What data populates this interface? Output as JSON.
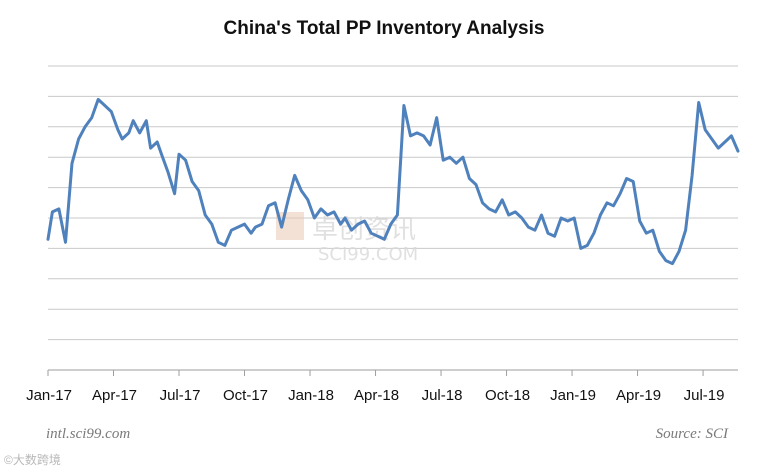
{
  "chart_data": {
    "type": "line",
    "title": "China's Total PP Inventory Analysis",
    "xlabel": "",
    "ylabel": "",
    "ylim": [
      0,
      10
    ],
    "grid": true,
    "categories": [
      "Jan-17",
      "Apr-17",
      "Jul-17",
      "Oct-17",
      "Jan-18",
      "Apr-18",
      "Jul-18",
      "Oct-18",
      "Jan-19",
      "Apr-19",
      "Jul-19"
    ],
    "series": [
      {
        "name": "Total PP Inventory",
        "color": "#4f81bd",
        "x": [
          0,
          0.2,
          0.5,
          0.8,
          1.1,
          1.4,
          1.7,
          2.0,
          2.3,
          2.6,
          2.9,
          3.2,
          3.4,
          3.7,
          3.9,
          4.2,
          4.5,
          4.7,
          5.0,
          5.2,
          5.5,
          5.8,
          6.0,
          6.3,
          6.6,
          6.9,
          7.2,
          7.5,
          7.8,
          8.1,
          8.4,
          8.7,
          9.0,
          9.3,
          9.5,
          9.8,
          10.1,
          10.4,
          10.7,
          11.0,
          11.3,
          11.6,
          11.9,
          12.2,
          12.5,
          12.8,
          13.1,
          13.4,
          13.6,
          13.9,
          14.2,
          14.5,
          14.8,
          15.1,
          15.4,
          15.7,
          16.0,
          16.3,
          16.6,
          16.9,
          17.2,
          17.5,
          17.8,
          18.1,
          18.4,
          18.7,
          19.0,
          19.3,
          19.6,
          19.9,
          20.2,
          20.5,
          20.8,
          21.1,
          21.4,
          21.7,
          22.0,
          22.3,
          22.6,
          22.9,
          23.2,
          23.5,
          23.8,
          24.1,
          24.4,
          24.7,
          25.0,
          25.3,
          25.6,
          25.9,
          26.2,
          26.5,
          26.8,
          27.1,
          27.4,
          27.7,
          28.0,
          28.3,
          28.6,
          28.9,
          29.2,
          29.5,
          29.8,
          30.1,
          30.4,
          30.7,
          31.0,
          31.3,
          31.6
        ],
        "values": [
          4.3,
          5.2,
          5.3,
          4.2,
          6.8,
          7.6,
          8.0,
          8.3,
          8.9,
          8.7,
          8.5,
          7.9,
          7.6,
          7.8,
          8.2,
          7.8,
          8.2,
          7.3,
          7.5,
          7.1,
          6.5,
          5.8,
          7.1,
          6.9,
          6.2,
          5.9,
          5.1,
          4.8,
          4.2,
          4.1,
          4.6,
          4.7,
          4.8,
          4.5,
          4.7,
          4.8,
          5.4,
          5.5,
          4.7,
          5.6,
          6.4,
          5.9,
          5.6,
          5.0,
          5.3,
          5.1,
          5.2,
          4.8,
          5.0,
          4.6,
          4.8,
          4.9,
          4.5,
          4.4,
          4.3,
          4.8,
          5.1,
          8.7,
          7.7,
          7.8,
          7.7,
          7.4,
          8.3,
          6.9,
          7.0,
          6.8,
          7.0,
          6.3,
          6.1,
          5.5,
          5.3,
          5.2,
          5.6,
          5.1,
          5.2,
          5.0,
          4.7,
          4.6,
          5.1,
          4.5,
          4.4,
          5.0,
          4.9,
          5.0,
          4.0,
          4.1,
          4.5,
          5.1,
          5.5,
          5.4,
          5.8,
          6.3,
          6.2,
          4.9,
          4.5,
          4.6,
          3.9,
          3.6,
          3.5,
          3.9,
          4.6,
          6.4,
          8.8,
          7.9,
          7.6,
          7.3,
          7.5,
          7.7,
          7.2
        ]
      }
    ],
    "annotations": [
      "intl.sci99.com",
      "Source: SCI"
    ],
    "watermark": "卓创资讯 SCI99.COM"
  },
  "footer": {
    "left": "intl.sci99.com",
    "right": "Source: SCI",
    "corner": "©大数跨境"
  }
}
